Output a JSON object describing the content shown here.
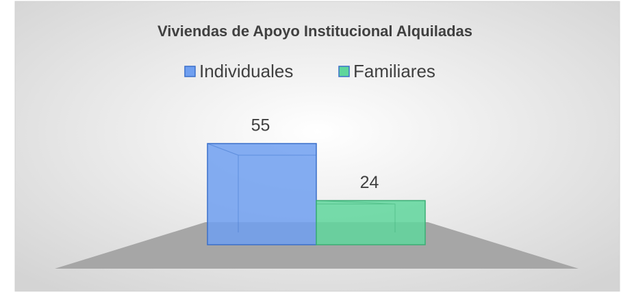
{
  "chart_data": {
    "type": "bar3d",
    "title": "Viviendas de Apoyo Institucional Alquiladas",
    "series": [
      {
        "name": "Individuales",
        "color": "#6f9ff0",
        "values": [
          55
        ]
      },
      {
        "name": "Familiares",
        "color": "#5fd69c",
        "values": [
          24
        ]
      }
    ],
    "legend": "top"
  }
}
